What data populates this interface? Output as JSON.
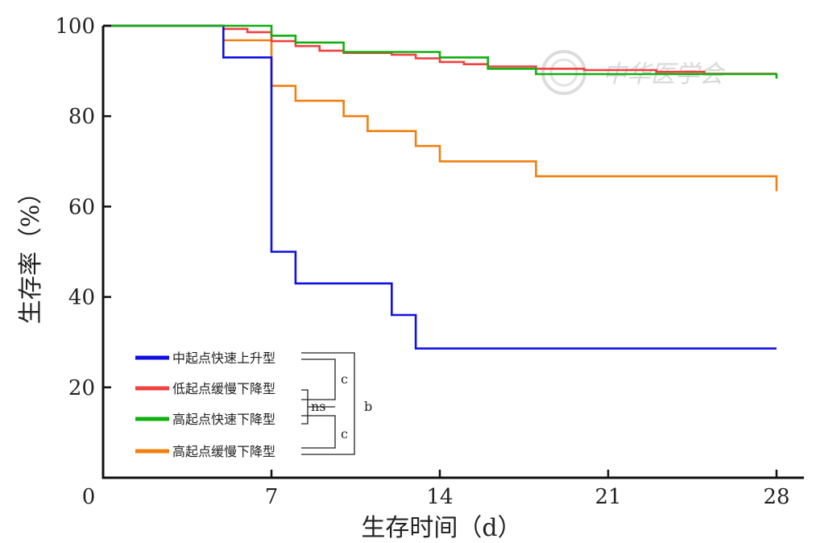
{
  "chart_data": {
    "type": "line",
    "title": "",
    "xlabel": "生存时间（d）",
    "ylabel": "生存率（%）",
    "xlim": [
      0,
      28
    ],
    "ylim": [
      0,
      100
    ],
    "xticks": [
      0,
      7,
      14,
      21,
      28
    ],
    "yticks": [
      20,
      40,
      60,
      80,
      100
    ],
    "xtick_labels": [
      "0",
      "7",
      "14",
      "21",
      "28"
    ],
    "ytick_labels": [
      "20",
      "40",
      "60",
      "80",
      "100"
    ],
    "grid": false,
    "legend_position": "bottom-left",
    "series": [
      {
        "name": "中起点快速上升型",
        "color": "#1010e0",
        "points": [
          [
            0,
            100
          ],
          [
            5,
            100
          ],
          [
            5,
            93
          ],
          [
            7,
            93
          ],
          [
            7,
            50
          ],
          [
            8,
            50
          ],
          [
            8,
            43
          ],
          [
            12,
            43
          ],
          [
            12,
            36
          ],
          [
            13,
            36
          ],
          [
            13,
            28.6
          ],
          [
            28,
            28.6
          ]
        ]
      },
      {
        "name": "低起点缓慢下降型",
        "color": "#f04040",
        "points": [
          [
            0,
            100
          ],
          [
            5,
            100
          ],
          [
            5,
            99.3
          ],
          [
            6,
            99.3
          ],
          [
            6,
            98.6
          ],
          [
            7,
            98.6
          ],
          [
            7,
            96.6
          ],
          [
            8,
            96.6
          ],
          [
            8,
            95.5
          ],
          [
            9,
            95.5
          ],
          [
            9,
            94.5
          ],
          [
            10,
            94.5
          ],
          [
            10,
            94
          ],
          [
            12,
            94
          ],
          [
            12,
            93.6
          ],
          [
            13,
            93.6
          ],
          [
            13,
            92.8
          ],
          [
            14,
            92.8
          ],
          [
            14,
            92
          ],
          [
            15,
            92
          ],
          [
            15,
            91.5
          ],
          [
            16,
            91.5
          ],
          [
            16,
            91
          ],
          [
            18,
            91
          ],
          [
            18,
            90.5
          ],
          [
            20,
            90.5
          ],
          [
            20,
            90.2
          ],
          [
            23,
            90.2
          ],
          [
            23,
            89.8
          ],
          [
            25,
            89.8
          ],
          [
            25,
            89.4
          ],
          [
            28,
            89.4
          ]
        ]
      },
      {
        "name": "高起点快速下降型",
        "color": "#10b010",
        "points": [
          [
            0,
            100
          ],
          [
            7,
            100
          ],
          [
            7,
            97.8
          ],
          [
            8,
            97.8
          ],
          [
            8,
            96.3
          ],
          [
            10,
            96.3
          ],
          [
            10,
            94.2
          ],
          [
            14,
            94.2
          ],
          [
            14,
            93
          ],
          [
            16,
            93
          ],
          [
            16,
            90.5
          ],
          [
            18,
            90.5
          ],
          [
            18,
            89.3
          ],
          [
            28,
            89.3
          ],
          [
            28,
            88.3
          ]
        ]
      },
      {
        "name": "高起点缓慢下降型",
        "color": "#f08010",
        "points": [
          [
            0,
            100
          ],
          [
            5,
            100
          ],
          [
            5,
            96.8
          ],
          [
            7,
            96.8
          ],
          [
            7,
            86.7
          ],
          [
            8,
            86.7
          ],
          [
            8,
            83.4
          ],
          [
            10,
            83.4
          ],
          [
            10,
            80
          ],
          [
            11,
            80
          ],
          [
            11,
            76.7
          ],
          [
            13,
            76.7
          ],
          [
            13,
            73.4
          ],
          [
            14,
            73.4
          ],
          [
            14,
            70
          ],
          [
            18,
            70
          ],
          [
            18,
            66.7
          ],
          [
            28,
            66.7
          ],
          [
            28,
            63.4
          ]
        ]
      }
    ],
    "annotations": {
      "pair_c_top": "c",
      "pair_ns": "ns",
      "pair_c_bottom": "c",
      "overall_b": "b"
    }
  },
  "watermark": {
    "text": "中华医学会"
  }
}
